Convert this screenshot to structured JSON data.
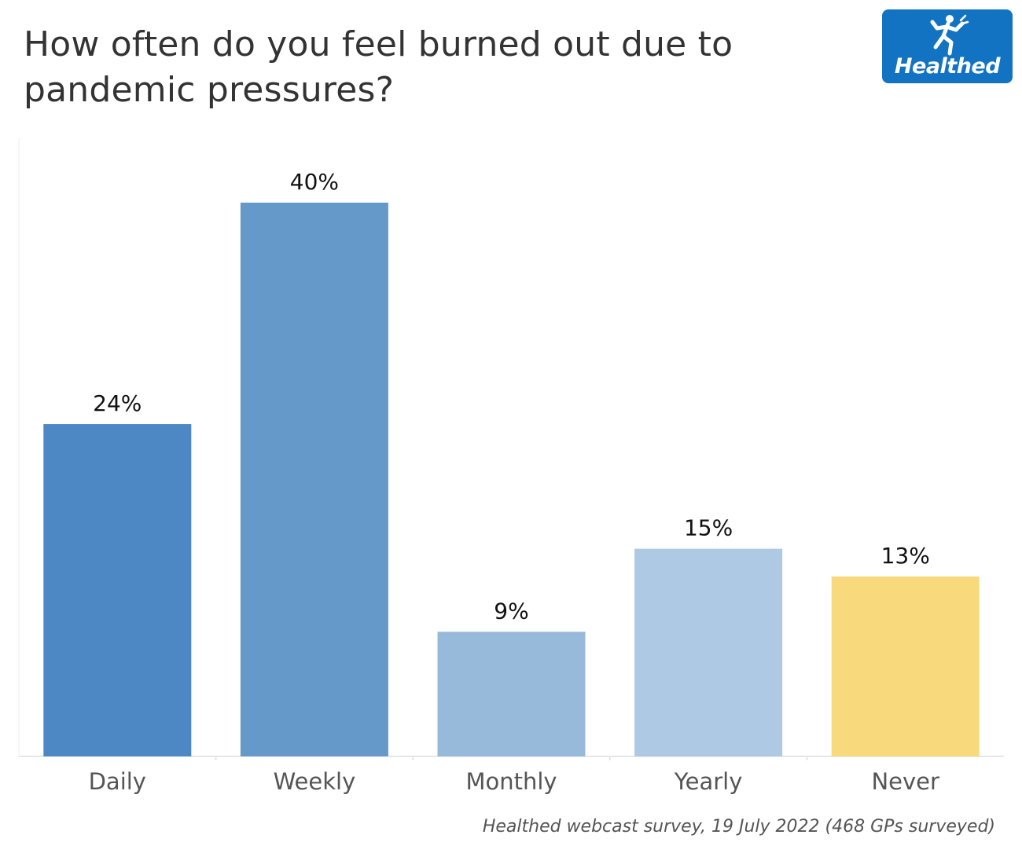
{
  "header": {
    "title": "How often do you feel burned out due to pandemic pressures?",
    "logo_text": "Healthed"
  },
  "footer": {
    "source": "Healthed webcast survey, 19 July 2022 (468 GPs surveyed)"
  },
  "colors": {
    "daily": "#4d88c4",
    "weekly": "#6599c9",
    "monthly": "#97b9da",
    "yearly": "#adc9e3",
    "never": "#f8da7c",
    "logo_bg": "#1273c2"
  },
  "chart_data": {
    "type": "bar",
    "title": "How often do you feel burned out due to pandemic pressures?",
    "categories": [
      "Daily",
      "Weekly",
      "Monthly",
      "Yearly",
      "Never"
    ],
    "values": [
      24,
      40,
      9,
      15,
      13
    ],
    "value_labels": [
      "24%",
      "40%",
      "9%",
      "15%",
      "13%"
    ],
    "unit": "%",
    "xlabel": "",
    "ylabel": "",
    "ylim": [
      0,
      40
    ],
    "grid": false,
    "legend": "none",
    "bar_colors": [
      "#4d88c4",
      "#6599c9",
      "#97b9da",
      "#adc9e3",
      "#f8da7c"
    ]
  }
}
